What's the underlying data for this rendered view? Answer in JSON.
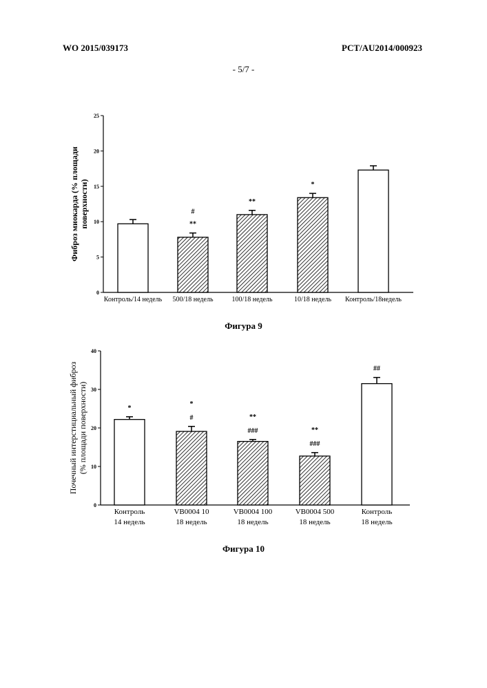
{
  "header": {
    "left": "WO 2015/039173",
    "right": "PCT/AU2014/000923",
    "page": "- 5/7 -"
  },
  "captions": {
    "fig9": "Фигура 9",
    "fig10": "Фигура 10"
  },
  "chart_data": [
    {
      "type": "bar",
      "ylabel_lines": [
        "Фиброз миокарда (% площади",
        "поверхности)"
      ],
      "ylim": [
        0,
        25
      ],
      "yticks": [
        0,
        5,
        10,
        15,
        20,
        25
      ],
      "categories": [
        [
          "Контроль/14 недель"
        ],
        [
          "500/18 недель"
        ],
        [
          "100/18 недель"
        ],
        [
          "10/18 недель"
        ],
        [
          "Контроль/18недель"
        ]
      ],
      "values": [
        9.7,
        7.8,
        11.0,
        13.4,
        17.3
      ],
      "errors": [
        0.6,
        0.6,
        0.6,
        0.6,
        0.6
      ],
      "patterns": [
        "open",
        "hatched",
        "hatched",
        "hatched",
        "open"
      ],
      "annotations": [
        [],
        [
          "#",
          "**"
        ],
        [
          "**"
        ],
        [
          "*"
        ],
        []
      ]
    },
    {
      "type": "bar",
      "ylabel_lines": [
        "Почечный интерстициальный фиброз",
        "(% площади поверхности)"
      ],
      "ylim": [
        0,
        40
      ],
      "yticks": [
        0,
        10,
        20,
        30,
        40
      ],
      "categories": [
        [
          "Контроль",
          "14 недель"
        ],
        [
          "VB0004 10",
          "18 недель"
        ],
        [
          "VB0004 100",
          "18 недель"
        ],
        [
          "VB0004 500",
          "18 недель"
        ],
        [
          "Контроль",
          "18 недель"
        ]
      ],
      "values": [
        22.2,
        19.1,
        16.5,
        12.7,
        31.5
      ],
      "errors": [
        0.7,
        1.3,
        0.5,
        0.9,
        1.6
      ],
      "patterns": [
        "open",
        "hatched",
        "hatched",
        "hatched",
        "open"
      ],
      "annotations": [
        [
          "*"
        ],
        [
          "*",
          "#"
        ],
        [
          "**",
          "###"
        ],
        [
          "**",
          "###"
        ],
        [
          "##"
        ]
      ]
    }
  ]
}
